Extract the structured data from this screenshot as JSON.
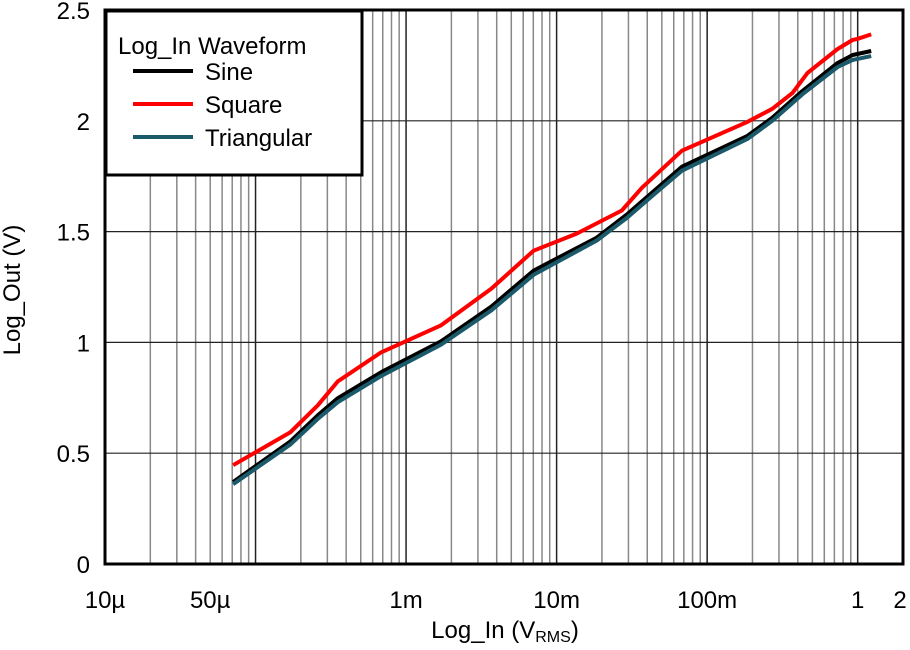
{
  "chart_data": {
    "type": "line",
    "xscale": "log",
    "xlabel": "Log_In (V",
    "xlabel_sub": "RMS",
    "xlabel_end": ")",
    "ylabel": "Log_Out (V)",
    "xlim": [
      1e-05,
      2
    ],
    "ylim": [
      0,
      2.5
    ],
    "grid": true,
    "legend_title": "Log_In Waveform",
    "legend_placement": "top-left",
    "xticks": [
      {
        "value": 1e-05,
        "label": "10µ"
      },
      {
        "value": 5e-05,
        "label": "50µ"
      },
      {
        "value": 0.001,
        "label": "1m"
      },
      {
        "value": 0.01,
        "label": "10m"
      },
      {
        "value": 0.1,
        "label": "100m"
      },
      {
        "value": 1,
        "label": "1"
      },
      {
        "value": 2,
        "label": "2"
      }
    ],
    "yticks": [
      {
        "value": 0,
        "label": "0"
      },
      {
        "value": 0.5,
        "label": "0.5"
      },
      {
        "value": 1,
        "label": "1"
      },
      {
        "value": 1.5,
        "label": "1.5"
      },
      {
        "value": 2,
        "label": "2"
      },
      {
        "value": 2.5,
        "label": "2.5"
      }
    ],
    "series": [
      {
        "name": "Sine",
        "color": "#000000",
        "x": [
          7.1e-05,
          0.000171,
          0.000259,
          0.000352,
          0.000681,
          0.00171,
          0.00369,
          0.00703,
          0.0185,
          0.0293,
          0.043,
          0.068,
          0.185,
          0.271,
          0.43,
          0.736,
          0.927,
          1.23
        ],
        "y": [
          0.37,
          0.554,
          0.671,
          0.748,
          0.865,
          1.005,
          1.162,
          1.324,
          1.473,
          1.577,
          1.676,
          1.793,
          1.932,
          2.014,
          2.135,
          2.261,
          2.297,
          2.315
        ]
      },
      {
        "name": "Square",
        "color": "#ff0000",
        "x": [
          7.1e-05,
          0.000171,
          0.000259,
          0.000352,
          0.000681,
          0.00171,
          0.00369,
          0.00703,
          0.0136,
          0.0271,
          0.0369,
          0.068,
          0.185,
          0.271,
          0.369,
          0.464,
          0.736,
          0.927,
          1.0,
          1.23
        ],
        "y": [
          0.446,
          0.595,
          0.716,
          0.824,
          0.955,
          1.077,
          1.243,
          1.414,
          1.491,
          1.595,
          1.698,
          1.865,
          1.995,
          2.054,
          2.126,
          2.216,
          2.324,
          2.365,
          2.37,
          2.39
        ]
      },
      {
        "name": "Triangular",
        "color": "#1a5a6a",
        "x": [
          7.1e-05,
          0.000171,
          0.000259,
          0.000352,
          0.000681,
          0.00171,
          0.00369,
          0.00703,
          0.0185,
          0.0293,
          0.043,
          0.068,
          0.185,
          0.271,
          0.43,
          0.736,
          0.927,
          1.23
        ],
        "y": [
          0.36,
          0.54,
          0.655,
          0.73,
          0.848,
          0.99,
          1.145,
          1.305,
          1.46,
          1.562,
          1.66,
          1.775,
          1.918,
          2.0,
          2.12,
          2.243,
          2.275,
          2.292
        ]
      }
    ]
  }
}
